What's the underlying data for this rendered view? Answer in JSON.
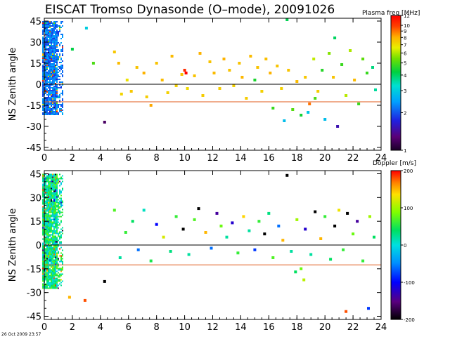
{
  "title": "EISCAT Tromso Dynasonde (O–mode),  20091026",
  "footer": "26 Oct 2009 23:57",
  "chart_data": [
    {
      "type": "scatter",
      "name": "plasma-frequency-panel",
      "ylabel": "NS Zenith angle",
      "xlabel": "",
      "xlim": [
        0,
        24
      ],
      "ylim": [
        -47,
        47
      ],
      "x_ticks": [
        "0",
        "2",
        "4",
        "6",
        "8",
        "10",
        "12",
        "14",
        "16",
        "18",
        "20",
        "22",
        "24"
      ],
      "y_ticks": [
        "45",
        "30",
        "15",
        "0",
        "-15",
        "-30",
        "-45"
      ],
      "reference_lines": [
        {
          "name": "zenith-zero-line",
          "y": 0,
          "color": "#000000"
        },
        {
          "name": "field-aligned-line",
          "y": -12.5,
          "color": "#e05a1a"
        }
      ],
      "colorbar": {
        "label": "Plasma freq [MHz]",
        "scale": "log",
        "range": [
          1,
          12
        ],
        "ticks": [
          "12",
          "10",
          "9",
          "8",
          "7",
          "6",
          "5",
          "4",
          "3",
          "2",
          "1"
        ]
      },
      "dense_band": {
        "x": [
          0,
          1.3
        ],
        "y": [
          -22,
          45
        ],
        "value_range": [
          1.8,
          2.6
        ]
      },
      "series": [
        {
          "name": "echoes",
          "points": [
            [
              2.0,
              25,
              4.2
            ],
            [
              3.0,
              40,
              3.0
            ],
            [
              3.5,
              15,
              5.0
            ],
            [
              4.3,
              -27,
              1.2
            ],
            [
              5.0,
              23,
              7.5
            ],
            [
              5.3,
              15,
              7.8
            ],
            [
              5.5,
              -7,
              7.2
            ],
            [
              5.9,
              3,
              6.9
            ],
            [
              6.2,
              -5,
              7.5
            ],
            [
              6.6,
              12,
              7.6
            ],
            [
              7.1,
              8,
              8.0
            ],
            [
              7.3,
              -9,
              7.4
            ],
            [
              7.6,
              -15,
              8.2
            ],
            [
              8.0,
              15,
              7.6
            ],
            [
              8.4,
              3,
              7.8
            ],
            [
              8.8,
              -6,
              7.3
            ],
            [
              9.1,
              20,
              7.8
            ],
            [
              9.4,
              -1,
              7.3
            ],
            [
              9.8,
              7,
              7.6
            ],
            [
              10.0,
              10,
              10.5
            ],
            [
              10.2,
              -3,
              7.1
            ],
            [
              10.7,
              6,
              7.6
            ],
            [
              11.1,
              22,
              8.0
            ],
            [
              11.3,
              -8,
              7.4
            ],
            [
              11.8,
              16,
              7.6
            ],
            [
              12.1,
              8,
              7.8
            ],
            [
              12.5,
              -3,
              7.4
            ],
            [
              12.8,
              18,
              8.0
            ],
            [
              13.2,
              10,
              7.6
            ],
            [
              13.5,
              -1,
              7.3
            ],
            [
              13.9,
              15,
              7.6
            ],
            [
              14.1,
              5,
              7.9
            ],
            [
              14.4,
              -10,
              7.4
            ],
            [
              14.7,
              20,
              7.8
            ],
            [
              15.0,
              3,
              4.5
            ],
            [
              15.2,
              12,
              7.6
            ],
            [
              15.5,
              -5,
              7.3
            ],
            [
              15.8,
              18,
              7.7
            ],
            [
              16.1,
              8,
              8.0
            ],
            [
              16.3,
              -17,
              4.8
            ],
            [
              16.6,
              13,
              7.6
            ],
            [
              16.9,
              -3,
              7.3
            ],
            [
              17.1,
              -26,
              2.8
            ],
            [
              17.4,
              10,
              7.6
            ],
            [
              17.7,
              -18,
              5.1
            ],
            [
              18.0,
              2,
              7.8
            ],
            [
              18.3,
              -22,
              4.4
            ],
            [
              18.6,
              5,
              7.5
            ],
            [
              18.9,
              -14,
              9.0
            ],
            [
              19.2,
              18,
              6.2
            ],
            [
              19.5,
              -5,
              7.4
            ],
            [
              19.8,
              10,
              4.6
            ],
            [
              20.0,
              -25,
              2.8
            ],
            [
              20.3,
              22,
              5.6
            ],
            [
              20.6,
              5,
              7.6
            ],
            [
              20.9,
              -30,
              1.5
            ],
            [
              21.2,
              14,
              4.8
            ],
            [
              21.5,
              -8,
              6.1
            ],
            [
              21.8,
              24,
              6.0
            ],
            [
              22.1,
              3,
              7.8
            ],
            [
              22.4,
              -14,
              4.8
            ],
            [
              22.7,
              18,
              5.2
            ],
            [
              23.0,
              8,
              4.8
            ],
            [
              23.4,
              12,
              3.8
            ],
            [
              23.6,
              -4,
              3.6
            ],
            [
              17.3,
              46,
              4.1
            ],
            [
              18.8,
              -20,
              2.9
            ],
            [
              20.7,
              33,
              4.0
            ],
            [
              10.1,
              8,
              12.0
            ],
            [
              19.3,
              -10,
              5.0
            ]
          ]
        }
      ]
    },
    {
      "type": "scatter",
      "name": "doppler-panel",
      "ylabel": "NS Zenith angle",
      "xlabel": "",
      "xlim": [
        0,
        24
      ],
      "ylim": [
        -47,
        47
      ],
      "x_ticks": [
        "0",
        "2",
        "4",
        "6",
        "8",
        "10",
        "12",
        "14",
        "16",
        "18",
        "20",
        "22",
        "24"
      ],
      "y_ticks": [
        "45",
        "30",
        "15",
        "0",
        "-15",
        "-30",
        "-45"
      ],
      "reference_lines": [
        {
          "name": "zenith-zero-line",
          "y": 0,
          "color": "#000000"
        },
        {
          "name": "field-aligned-line",
          "y": -12.5,
          "color": "#e05a1a"
        }
      ],
      "colorbar": {
        "label": "Doppler [m/s]",
        "scale": "linear",
        "range": [
          -200,
          200
        ],
        "ticks": [
          "200",
          "100",
          "0",
          "-100",
          "-200"
        ]
      },
      "dense_band": {
        "x": [
          0,
          1.3
        ],
        "y": [
          -27,
          45
        ],
        "value_range": [
          -20,
          80
        ]
      },
      "series": [
        {
          "name": "echoes",
          "points": [
            [
              1.8,
              -33,
              150
            ],
            [
              2.9,
              -35,
              180
            ],
            [
              4.3,
              -23,
              -200
            ],
            [
              5.0,
              22,
              70
            ],
            [
              5.4,
              -8,
              20
            ],
            [
              5.8,
              8,
              60
            ],
            [
              6.3,
              15,
              40
            ],
            [
              6.7,
              -3,
              -60
            ],
            [
              7.1,
              22,
              10
            ],
            [
              7.6,
              -10,
              50
            ],
            [
              8.0,
              13,
              -100
            ],
            [
              8.5,
              5,
              120
            ],
            [
              9.0,
              -4,
              30
            ],
            [
              9.4,
              18,
              60
            ],
            [
              9.9,
              10,
              -200
            ],
            [
              10.3,
              -6,
              20
            ],
            [
              10.7,
              16,
              70
            ],
            [
              11.0,
              23,
              -200
            ],
            [
              11.5,
              8,
              150
            ],
            [
              11.9,
              -2,
              -60
            ],
            [
              12.3,
              20,
              -140
            ],
            [
              12.6,
              12,
              80
            ],
            [
              13.0,
              5,
              20
            ],
            [
              13.4,
              14,
              -120
            ],
            [
              13.8,
              -5,
              60
            ],
            [
              14.2,
              18,
              140
            ],
            [
              14.6,
              9,
              20
            ],
            [
              15.0,
              -3,
              -80
            ],
            [
              15.3,
              15,
              60
            ],
            [
              15.7,
              7,
              -200
            ],
            [
              16.0,
              20,
              30
            ],
            [
              16.3,
              -8,
              70
            ],
            [
              16.7,
              12,
              -60
            ],
            [
              17.0,
              3,
              150
            ],
            [
              17.3,
              44,
              -200
            ],
            [
              17.6,
              -4,
              20
            ],
            [
              18.0,
              16,
              100
            ],
            [
              18.3,
              -15,
              80
            ],
            [
              18.6,
              10,
              -120
            ],
            [
              19.0,
              -6,
              20
            ],
            [
              19.3,
              21,
              -200
            ],
            [
              19.7,
              4,
              150
            ],
            [
              20.0,
              18,
              60
            ],
            [
              20.4,
              -9,
              40
            ],
            [
              20.7,
              12,
              -200
            ],
            [
              21.0,
              22,
              130
            ],
            [
              21.3,
              -3,
              60
            ],
            [
              21.6,
              20,
              -200
            ],
            [
              22.0,
              7,
              80
            ],
            [
              22.3,
              15,
              -140
            ],
            [
              22.7,
              -10,
              60
            ],
            [
              23.2,
              18,
              100
            ],
            [
              23.5,
              5,
              40
            ],
            [
              21.5,
              -42,
              180
            ],
            [
              23.1,
              -40,
              -80
            ],
            [
              18.5,
              -22,
              110
            ],
            [
              17.9,
              -17,
              40
            ]
          ]
        }
      ]
    }
  ]
}
